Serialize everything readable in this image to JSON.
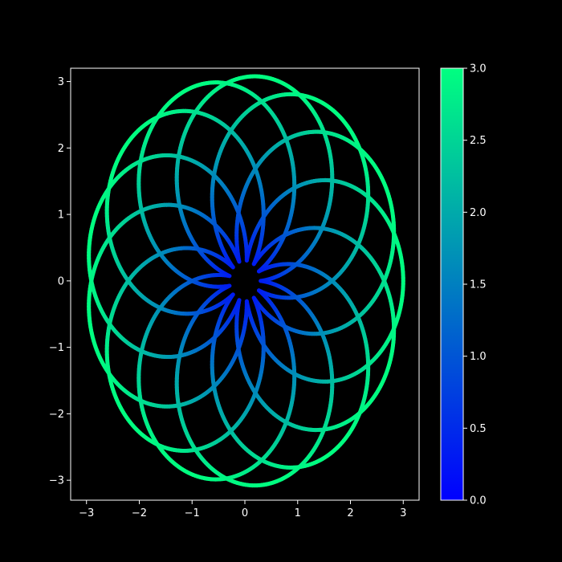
{
  "chart_data": {
    "type": "line",
    "title": "",
    "xlabel": "",
    "ylabel": "",
    "xlim": [
      -3.3,
      3.3
    ],
    "ylim": [
      -3.3,
      3.2
    ],
    "x_ticks": [
      -3,
      -2,
      -1,
      0,
      1,
      2,
      3
    ],
    "x_tick_labels": [
      "−3",
      "−2",
      "−1",
      "0",
      "1",
      "2",
      "3"
    ],
    "y_ticks": [
      -3,
      -2,
      -1,
      0,
      1,
      2,
      3
    ],
    "y_tick_labels": [
      "−3",
      "−2",
      "−1",
      "0",
      "1",
      "2",
      "3"
    ],
    "grid": false,
    "curve": {
      "description": "rose / hypotrochoid trace colored by radius",
      "equation_x": "x(t) = 1.5*cos(t) + 1.5*cos(13/12 * t)",
      "equation_y": "y(t) = 0.9*sin(t) - 1.5*sin(13/12 * t) ... (approximate epitrochoid, 13 petals)",
      "start": [
        3.0,
        0.0
      ],
      "end": [
        0.7,
        0.9
      ],
      "radius_range": [
        0.3,
        3.0
      ],
      "petals": 13
    },
    "colorbar": {
      "label": "",
      "min": 0.0,
      "max": 3.0,
      "ticks": [
        0.0,
        0.5,
        1.0,
        1.5,
        2.0,
        2.5,
        3.0
      ],
      "tick_labels": [
        "0.0",
        "0.5",
        "1.0",
        "1.5",
        "2.0",
        "2.5",
        "3.0"
      ],
      "colormap": "winter",
      "color_low": "#0000ff",
      "color_high": "#00ff80"
    },
    "colors": {
      "background": "#000000",
      "axes": "#ffffff",
      "text": "#ffffff"
    }
  }
}
